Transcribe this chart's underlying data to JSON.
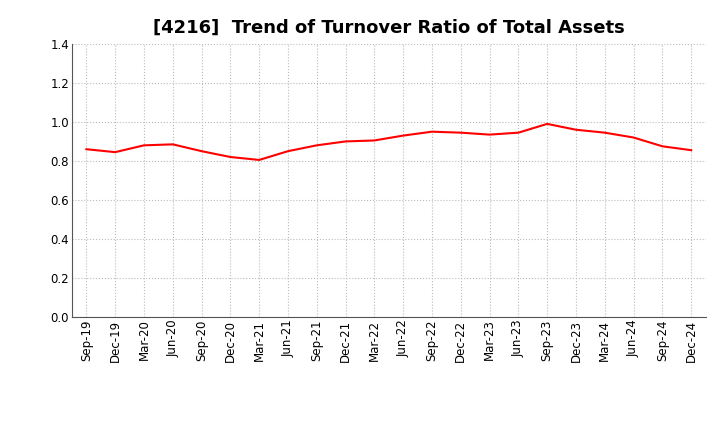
{
  "title": "[4216]  Trend of Turnover Ratio of Total Assets",
  "x_labels": [
    "Sep-19",
    "Dec-19",
    "Mar-20",
    "Jun-20",
    "Sep-20",
    "Dec-20",
    "Mar-21",
    "Jun-21",
    "Sep-21",
    "Dec-21",
    "Mar-22",
    "Jun-22",
    "Sep-22",
    "Dec-22",
    "Mar-23",
    "Jun-23",
    "Sep-23",
    "Dec-23",
    "Mar-24",
    "Jun-24",
    "Sep-24",
    "Dec-24"
  ],
  "values": [
    0.86,
    0.845,
    0.88,
    0.885,
    0.85,
    0.82,
    0.805,
    0.85,
    0.88,
    0.9,
    0.905,
    0.93,
    0.95,
    0.945,
    0.935,
    0.945,
    0.99,
    0.96,
    0.945,
    0.92,
    0.875,
    0.855
  ],
  "line_color": "#ff0000",
  "line_width": 1.5,
  "grid_color": "#bbbbbb",
  "background_color": "#ffffff",
  "ylim": [
    0.0,
    1.4
  ],
  "yticks": [
    0.0,
    0.2,
    0.4,
    0.6,
    0.8,
    1.0,
    1.2,
    1.4
  ],
  "title_fontsize": 13,
  "tick_fontsize": 8.5
}
